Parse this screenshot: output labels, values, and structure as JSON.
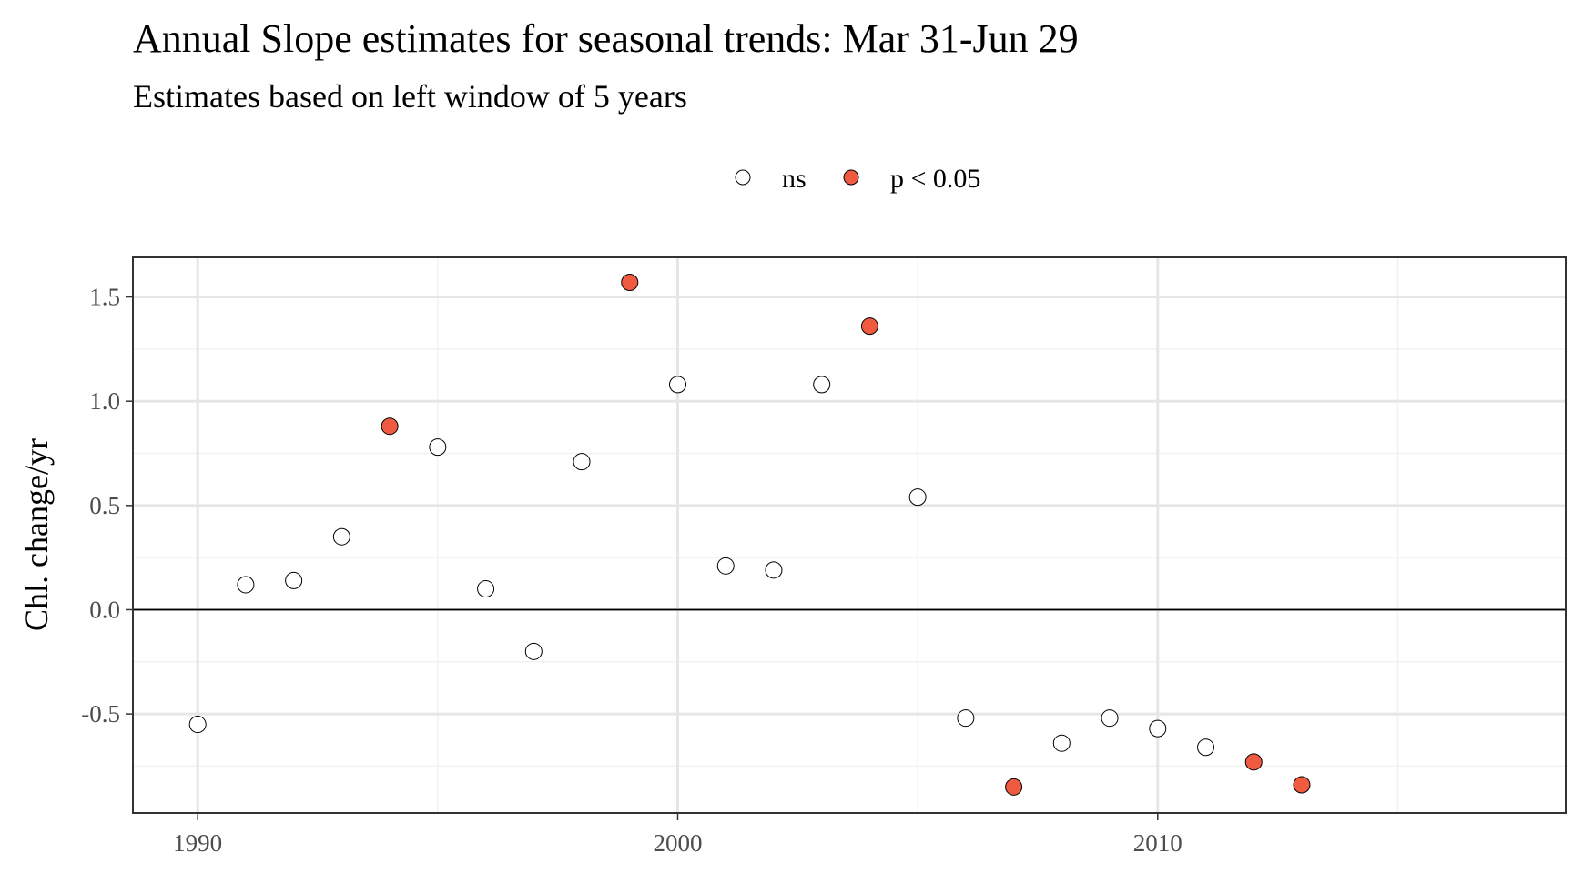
{
  "chart_data": {
    "type": "scatter",
    "title": "Annual Slope estimates for seasonal trends: Mar 31-Jun 29",
    "subtitle": "Estimates based on left window of 5 years",
    "xlabel": "",
    "ylabel": "Chl. change/yr",
    "xlim": [
      1988.65,
      2018.5
    ],
    "ylim": [
      -0.975,
      1.69
    ],
    "x_ticks": [
      1990,
      2000,
      2010
    ],
    "x_tick_labels": [
      "1990",
      "2000",
      "2010"
    ],
    "x_minor_ticks": [
      1995,
      2005,
      2015
    ],
    "y_ticks": [
      -0.5,
      0.0,
      0.5,
      1.0,
      1.5
    ],
    "y_tick_labels": [
      "-0.5",
      "0.0",
      "0.5",
      "1.0",
      "1.5"
    ],
    "y_minor_ticks": [
      -0.75,
      -0.25,
      0.25,
      0.75,
      1.25
    ],
    "reference_line_y": 0,
    "grid": true,
    "legend_position": "top",
    "series": [
      {
        "name": "ns",
        "color": "#ffffff",
        "stroke": "#000000",
        "points": [
          {
            "x": 1990,
            "y": -0.55
          },
          {
            "x": 1991,
            "y": 0.12
          },
          {
            "x": 1992,
            "y": 0.14
          },
          {
            "x": 1993,
            "y": 0.35
          },
          {
            "x": 1995,
            "y": 0.78
          },
          {
            "x": 1996,
            "y": 0.1
          },
          {
            "x": 1997,
            "y": -0.2
          },
          {
            "x": 1998,
            "y": 0.71
          },
          {
            "x": 2000,
            "y": 1.08
          },
          {
            "x": 2001,
            "y": 0.21
          },
          {
            "x": 2002,
            "y": 0.19
          },
          {
            "x": 2003,
            "y": 1.08
          },
          {
            "x": 2005,
            "y": 0.54
          },
          {
            "x": 2006,
            "y": -0.52
          },
          {
            "x": 2008,
            "y": -0.64
          },
          {
            "x": 2009,
            "y": -0.52
          },
          {
            "x": 2010,
            "y": -0.57
          },
          {
            "x": 2011,
            "y": -0.66
          }
        ]
      },
      {
        "name": "p < 0.05",
        "color": "#f05a41",
        "stroke": "#000000",
        "points": [
          {
            "x": 1994,
            "y": 0.88
          },
          {
            "x": 1999,
            "y": 1.57
          },
          {
            "x": 2004,
            "y": 1.36
          },
          {
            "x": 2007,
            "y": -0.85
          },
          {
            "x": 2012,
            "y": -0.73
          },
          {
            "x": 2013,
            "y": -0.84
          }
        ]
      }
    ]
  }
}
